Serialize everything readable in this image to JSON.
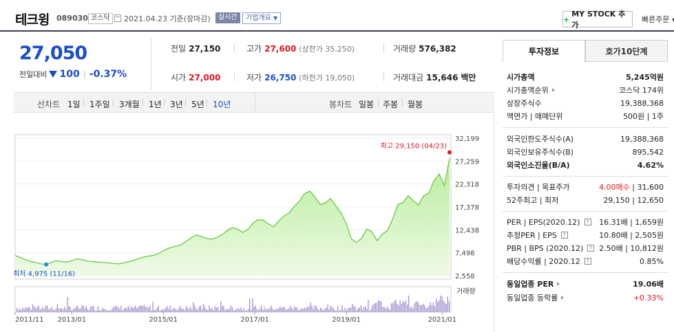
{
  "header": {
    "name": "테크윙",
    "code": "089030",
    "market": "코스닥",
    "date": "2021.04.23",
    "basis": "기준(장마감)",
    "realtime": "실시간",
    "company_info": "기업개요",
    "mystock": "MY STOCK 추가",
    "quick_order": "빠른주문"
  },
  "price": {
    "current": "27,050",
    "change_label": "전일대비",
    "change_amount": "100",
    "change_rate": "-0.37%"
  },
  "stats": {
    "prev_label": "전일",
    "prev": "27,150",
    "high_label": "고가",
    "high": "27,600",
    "upper_limit": "(상한가 35,250)",
    "volume_label": "거래량",
    "volume": "576,382",
    "open_label": "시가",
    "open": "27,000",
    "low_label": "저가",
    "low": "26,750",
    "lower_limit": "(하한가 19,050)",
    "amount_label": "거래대금",
    "amount": "15,646",
    "amount_unit": "백만"
  },
  "periods": {
    "line_label": "선차트",
    "line": [
      "1일",
      "1주일",
      "3개월",
      "1년",
      "3년",
      "5년",
      "10년"
    ],
    "active": "10년",
    "candle_label": "봉차트",
    "candle": [
      "일봉",
      "주봉",
      "월봉"
    ]
  },
  "side": {
    "tabs": [
      "투자정보",
      "호가10단계"
    ],
    "rows": [
      {
        "label": "시가총액",
        "value": "5,245억원"
      },
      {
        "label": "시가총액순위",
        "value": "코스닥 174위"
      },
      {
        "label": "상장주식수",
        "value": "19,388,368"
      },
      {
        "label": "액면가 | 매매단위",
        "value": "500원 | 1주"
      },
      {
        "label": "외국인한도주식수(A)",
        "value": "19,388,368"
      },
      {
        "label": "외국인보유주식수(B)",
        "value": "895,542"
      },
      {
        "label": "외국인소진율(B/A)",
        "value": "4.62%"
      },
      {
        "label": "투자의견 | 목표주가",
        "value_red": "4.00매수",
        "value": "| 31,600"
      },
      {
        "label": "52주최고 | 최저",
        "value": "29,150 | 12,650"
      },
      {
        "label": "PER | EPS(2020.12)",
        "value": "16.31배 | 1,659원"
      },
      {
        "label": "추정PER | EPS",
        "value": "10.80배 | 2,505원"
      },
      {
        "label": "PBR | BPS (2020.12)",
        "value": "2.50배 | 10,812원"
      },
      {
        "label": "배당수익률 | 2020.12",
        "value": "0.85%"
      },
      {
        "label": "동일업종 PER",
        "value": "19.06배"
      },
      {
        "label": "동일업종 등락률",
        "value": "+0.33%"
      }
    ]
  },
  "chart_data": {
    "type": "area",
    "y_ticks": [
      "32,199",
      "27,259",
      "22,318",
      "17,378",
      "12,438",
      "7,498",
      "2,558"
    ],
    "ylim": [
      2558,
      32199
    ],
    "x_ticks": [
      "2011/11",
      "2013/01",
      "2015/01",
      "2017/01",
      "2019/01",
      "2021/01"
    ],
    "max_label": "최고 29,150 (04/23)",
    "min_label": "최저 4,975 (11/16)",
    "volume_label": "거래량",
    "series": [
      {
        "values": [
          6900,
          6500,
          6000,
          5600,
          5400,
          5100,
          4975,
          5400,
          5800,
          5600,
          5500,
          5800,
          6200,
          6000,
          5700,
          5600,
          5500,
          5400,
          5300,
          5200,
          5100,
          5300,
          5600,
          5900,
          6300,
          6600,
          6800,
          7000,
          7500,
          8100,
          8600,
          8900,
          9200,
          9900,
          10700,
          11300,
          11000,
          10600,
          10400,
          10800,
          11400,
          12300,
          12900,
          12600,
          11900,
          12500,
          13900,
          14600,
          14500,
          13700,
          13100,
          14400,
          15400,
          16100,
          17500,
          18700,
          20300,
          20800,
          19500,
          17900,
          18300,
          19200,
          17600,
          16100,
          13800,
          10500,
          9700,
          10600,
          12600,
          12000,
          10100,
          11500,
          12300,
          14800,
          17900,
          18300,
          19800,
          18700,
          17800,
          19800,
          20400,
          23100,
          24500,
          22000,
          27900
        ]
      }
    ]
  }
}
